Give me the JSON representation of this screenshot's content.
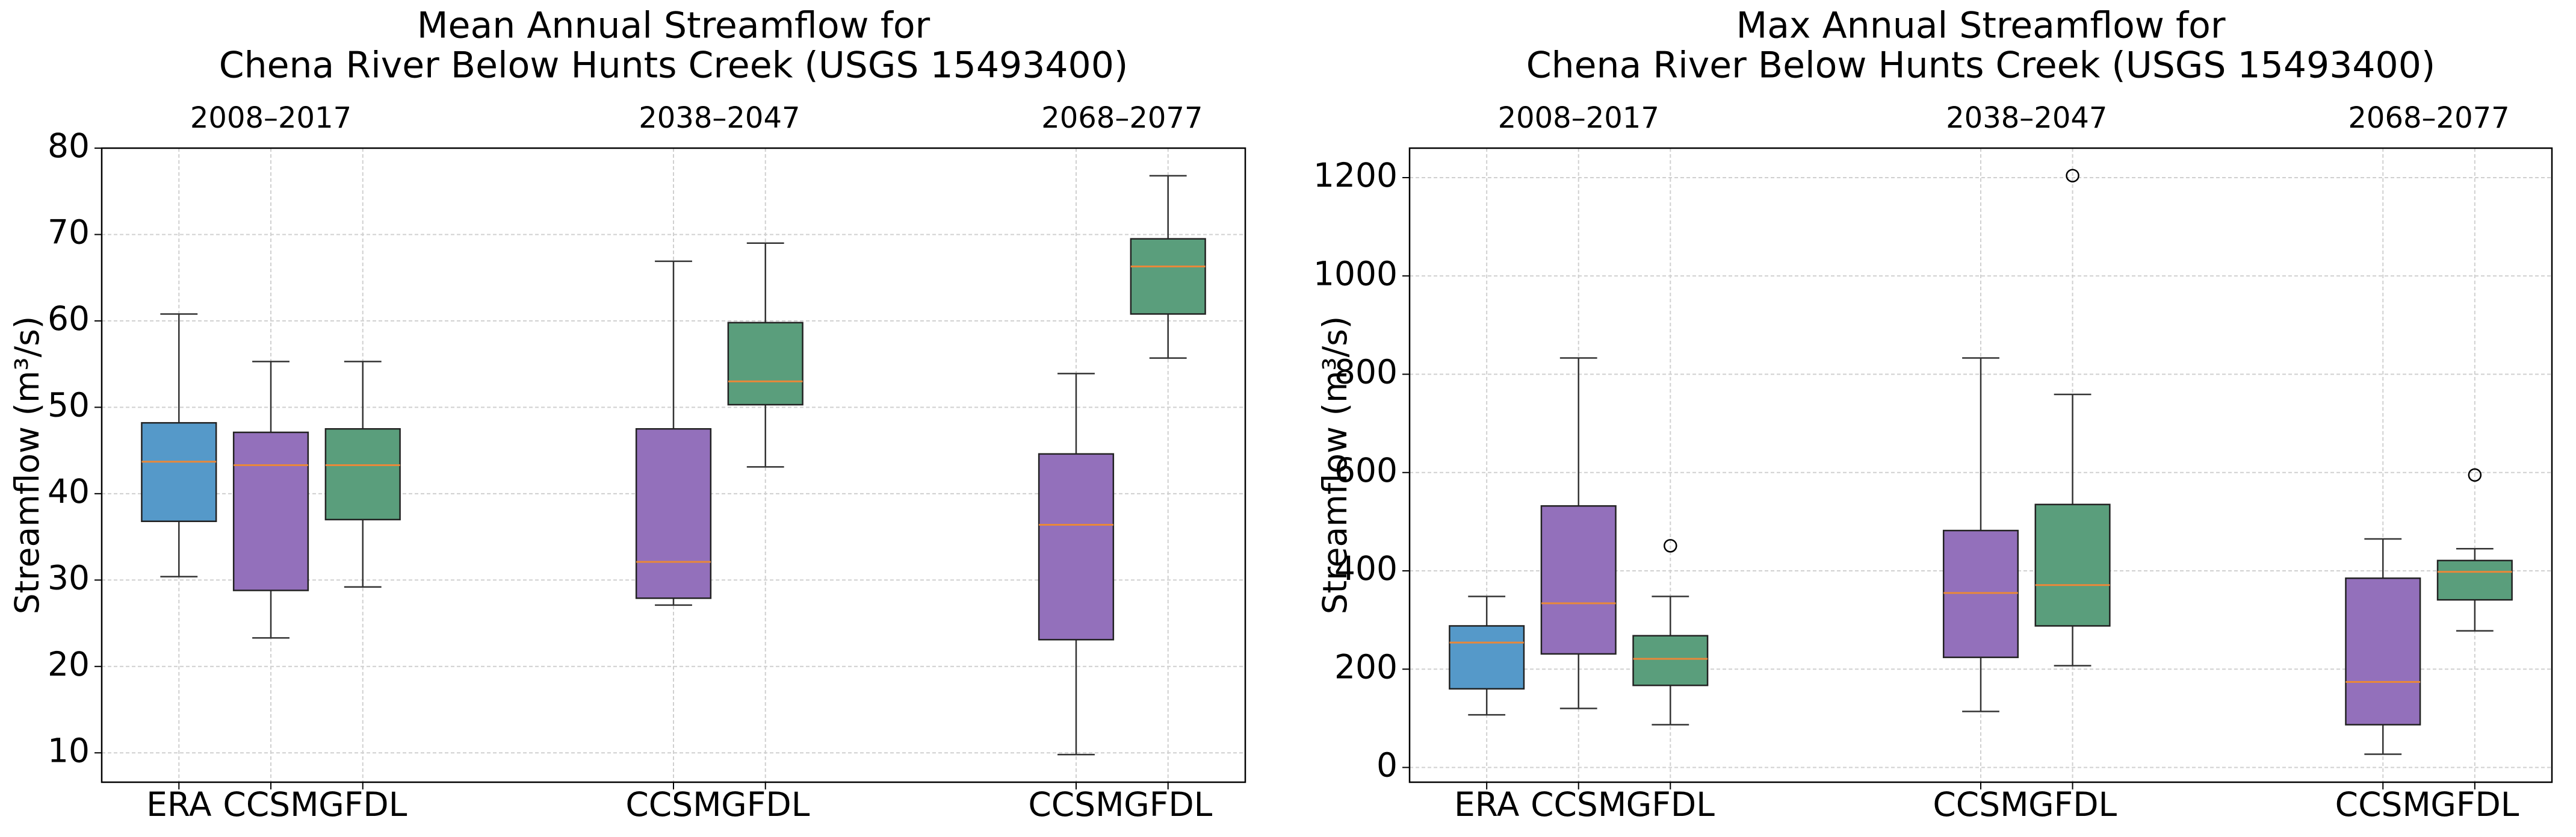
{
  "chart_data": [
    {
      "type": "box",
      "title": [
        "Mean Annual Streamflow for",
        "Chena River Below Hunts Creek (USGS 15493400)"
      ],
      "ylabel": "Streamflow (m³/s)",
      "ylim": [
        6.6,
        80
      ],
      "yticks": [
        10,
        20,
        30,
        40,
        50,
        60,
        70,
        80
      ],
      "grid": true,
      "median_color": "#e8883a",
      "groups": [
        {
          "label": "2008–2017",
          "boxes": [
            {
              "name": "ERA",
              "color": "#5599c9",
              "low": 30.4,
              "q1": 36.8,
              "median": 43.7,
              "q3": 48.2,
              "high": 60.8
            },
            {
              "name": "CCSM",
              "color": "#9370bb",
              "low": 23.3,
              "q1": 28.8,
              "median": 43.3,
              "q3": 47.1,
              "high": 55.3
            },
            {
              "name": "GFDL",
              "color": "#5a9e7c",
              "low": 29.2,
              "q1": 37.0,
              "median": 43.3,
              "q3": 47.5,
              "high": 55.3
            }
          ]
        },
        {
          "label": "2038–2047",
          "boxes": [
            {
              "name": "CCSM",
              "color": "#9370bb",
              "low": 27.1,
              "q1": 27.9,
              "median": 32.1,
              "q3": 47.5,
              "high": 66.9
            },
            {
              "name": "GFDL",
              "color": "#5a9e7c",
              "low": 43.1,
              "q1": 50.3,
              "median": 53.0,
              "q3": 59.8,
              "high": 69.0
            }
          ]
        },
        {
          "label": "2068–2077",
          "boxes": [
            {
              "name": "CCSM",
              "color": "#9370bb",
              "low": 9.8,
              "q1": 23.1,
              "median": 36.4,
              "q3": 44.6,
              "high": 53.9
            },
            {
              "name": "GFDL",
              "color": "#5a9e7c",
              "low": 55.7,
              "q1": 60.8,
              "median": 66.3,
              "q3": 69.5,
              "high": 76.8
            }
          ]
        }
      ]
    },
    {
      "type": "box",
      "title": [
        "Max Annual Streamflow for",
        "Chena River Below Hunts Creek (USGS 15493400)"
      ],
      "ylabel": "Streamflow (m³/s)",
      "ylim": [
        -30,
        1260
      ],
      "yticks": [
        0,
        200,
        400,
        600,
        800,
        1000,
        1200
      ],
      "grid": true,
      "median_color": "#e8883a",
      "groups": [
        {
          "label": "2008–2017",
          "boxes": [
            {
              "name": "ERA",
              "color": "#5599c9",
              "low": 107,
              "q1": 160,
              "median": 254,
              "q3": 288,
              "high": 348
            },
            {
              "name": "CCSM",
              "color": "#9370bb",
              "low": 120,
              "q1": 231,
              "median": 334,
              "q3": 532,
              "high": 833
            },
            {
              "name": "GFDL",
              "color": "#5a9e7c",
              "low": 87,
              "q1": 167,
              "median": 221,
              "q3": 268,
              "high": 348,
              "outliers": [
                451
              ]
            }
          ]
        },
        {
          "label": "2038–2047",
          "boxes": [
            {
              "name": "CCSM",
              "color": "#9370bb",
              "low": 114,
              "q1": 224,
              "median": 355,
              "q3": 482,
              "high": 833
            },
            {
              "name": "GFDL",
              "color": "#5a9e7c",
              "low": 207,
              "q1": 288,
              "median": 371,
              "q3": 535,
              "high": 759,
              "outliers": [
                1204
              ]
            }
          ]
        },
        {
          "label": "2068–2077",
          "boxes": [
            {
              "name": "CCSM",
              "color": "#9370bb",
              "low": 27,
              "q1": 87,
              "median": 174,
              "q3": 385,
              "high": 465
            },
            {
              "name": "GFDL",
              "color": "#5a9e7c",
              "low": 278,
              "q1": 341,
              "median": 398,
              "q3": 421,
              "high": 445,
              "outliers": [
                595
              ]
            }
          ]
        }
      ]
    }
  ]
}
